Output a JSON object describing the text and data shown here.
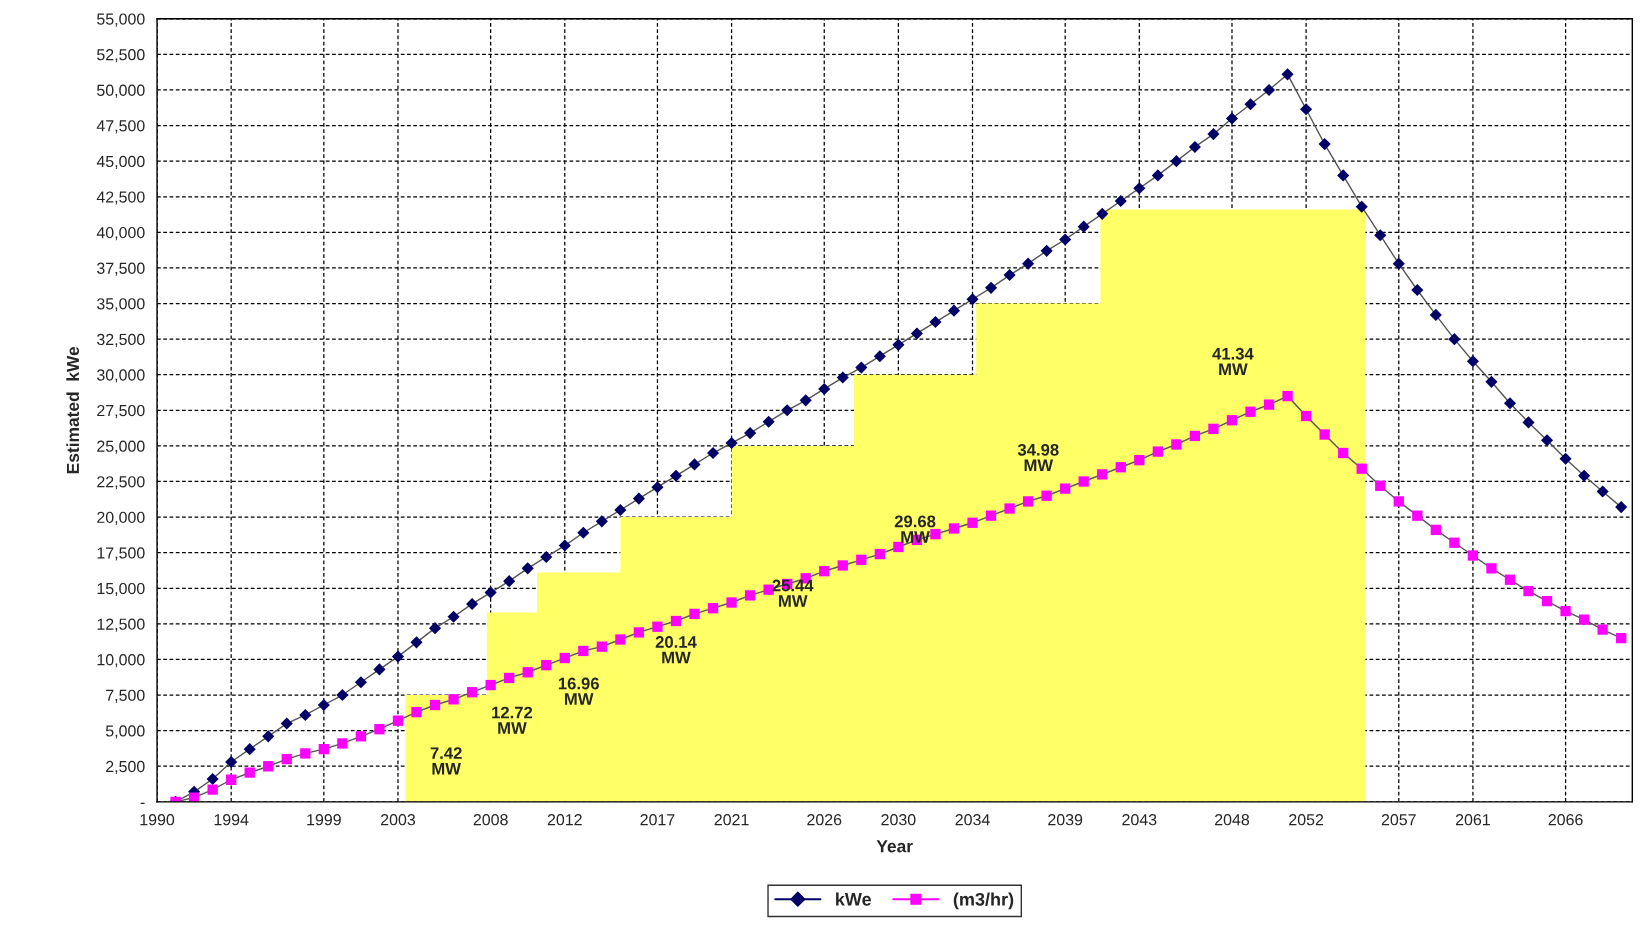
{
  "chart_data": {
    "type": "line",
    "xlabel": "Year",
    "ylabel": "Estimated  kWe",
    "x": [
      1991,
      1992,
      1993,
      1994,
      1995,
      1996,
      1997,
      1998,
      1999,
      2000,
      2001,
      2002,
      2003,
      2004,
      2005,
      2006,
      2007,
      2008,
      2009,
      2010,
      2011,
      2012,
      2013,
      2014,
      2015,
      2016,
      2017,
      2018,
      2019,
      2020,
      2021,
      2022,
      2023,
      2024,
      2025,
      2026,
      2027,
      2028,
      2029,
      2030,
      2031,
      2032,
      2033,
      2034,
      2035,
      2036,
      2037,
      2038,
      2039,
      2040,
      2041,
      2042,
      2043,
      2044,
      2045,
      2046,
      2047,
      2048,
      2049,
      2050,
      2051,
      2052,
      2053,
      2054,
      2055,
      2056,
      2057,
      2058,
      2059,
      2060,
      2061,
      2062,
      2063,
      2064,
      2065,
      2066,
      2067,
      2068,
      2069
    ],
    "series": [
      {
        "type": "area",
        "color": "#ffff66",
        "x": [
          2003.4,
          2007.8,
          2007.8,
          2010.5,
          2010.5,
          2015.0,
          2015.0,
          2021.0,
          2021.0,
          2027.6,
          2027.6,
          2034.2,
          2034.2,
          2040.9,
          2040.9,
          2055.2
        ],
        "values": [
          7500,
          7500,
          13300,
          13300,
          16100,
          16100,
          20000,
          20000,
          25000,
          25000,
          30000,
          30000,
          35000,
          35000,
          41600,
          41600
        ]
      },
      {
        "name": "kWe",
        "color": "#000066",
        "marker": "diamond",
        "values": [
          0,
          700,
          1600,
          2800,
          3700,
          4600,
          5500,
          6100,
          6800,
          7500,
          8400,
          9300,
          10200,
          11200,
          12200,
          13000,
          13900,
          14700,
          15500,
          16400,
          17200,
          18000,
          18900,
          19700,
          20500,
          21300,
          22100,
          22900,
          23700,
          24500,
          25200,
          25900,
          26700,
          27500,
          28200,
          29000,
          29800,
          30500,
          31300,
          32100,
          32900,
          33700,
          34500,
          35300,
          36100,
          37000,
          37800,
          38700,
          39500,
          40400,
          41300,
          42200,
          43100,
          44000,
          45000,
          46000,
          46900,
          48000,
          49000,
          50000,
          51100,
          48650,
          46200,
          44000,
          41800,
          39800,
          37800,
          35950,
          34200,
          32500,
          30950,
          29500,
          28000,
          26650,
          25400,
          24100,
          22900,
          21800,
          20700
        ]
      },
      {
        "name": "(m3/hr)",
        "color": "#ff00ff",
        "marker": "square",
        "values": [
          0,
          300,
          850,
          1550,
          2050,
          2500,
          3000,
          3400,
          3700,
          4100,
          4600,
          5100,
          5700,
          6300,
          6800,
          7200,
          7700,
          8200,
          8700,
          9100,
          9600,
          10100,
          10600,
          10900,
          11400,
          11900,
          12300,
          12700,
          13200,
          13600,
          14000,
          14500,
          14900,
          15300,
          15700,
          16200,
          16600,
          17000,
          17400,
          17900,
          18400,
          18800,
          19200,
          19600,
          20100,
          20600,
          21100,
          21500,
          22000,
          22500,
          23000,
          23500,
          24000,
          24600,
          25100,
          25700,
          26200,
          26800,
          27400,
          27900,
          28500,
          27100,
          25800,
          24500,
          23400,
          22200,
          21100,
          20100,
          19100,
          18200,
          17300,
          16400,
          15600,
          14800,
          14100,
          13400,
          12800,
          12100,
          11500
        ]
      }
    ],
    "annotations": [
      "7.42\nMW",
      "12.72\nMW",
      "16.96\nMW",
      "20.14\nMW",
      "25.44\nMW",
      "29.68\nMW",
      "34.98\nMW",
      "41.34\nMW"
    ],
    "xlim": [
      1990,
      2069.6
    ],
    "xticks": [
      1990,
      1994,
      1999,
      2003,
      2008,
      2012,
      2017,
      2021,
      2026,
      2030,
      2034,
      2039,
      2043,
      2048,
      2052,
      2057,
      2061,
      2066
    ],
    "ylim": [
      0,
      55000
    ],
    "yticks": [
      {
        "value": 0,
        "label": "-"
      },
      {
        "value": 2500,
        "label": "2,500"
      },
      {
        "value": 5000,
        "label": "5,000"
      },
      {
        "value": 7500,
        "label": "7,500"
      },
      {
        "value": 10000,
        "label": "10,000"
      },
      {
        "value": 12500,
        "label": "12,500"
      },
      {
        "value": 15000,
        "label": "15,000"
      },
      {
        "value": 17500,
        "label": "17,500"
      },
      {
        "value": 20000,
        "label": "20,000"
      },
      {
        "value": 22500,
        "label": "22,500"
      },
      {
        "value": 25000,
        "label": "25,000"
      },
      {
        "value": 27500,
        "label": "27,500"
      },
      {
        "value": 30000,
        "label": "30,000"
      },
      {
        "value": 32500,
        "label": "32,500"
      },
      {
        "value": 35000,
        "label": "35,000"
      },
      {
        "value": 37500,
        "label": "37,500"
      },
      {
        "value": 40000,
        "label": "40,000"
      },
      {
        "value": 42500,
        "label": "42,500"
      },
      {
        "value": 45000,
        "label": "45,000"
      },
      {
        "value": 47500,
        "label": "47,500"
      },
      {
        "value": 50000,
        "label": "50,000"
      },
      {
        "value": 52500,
        "label": "52,500"
      },
      {
        "value": 55000,
        "label": "55,000"
      }
    ],
    "grid": true,
    "legend": "bottom",
    "line_style": "solid"
  }
}
